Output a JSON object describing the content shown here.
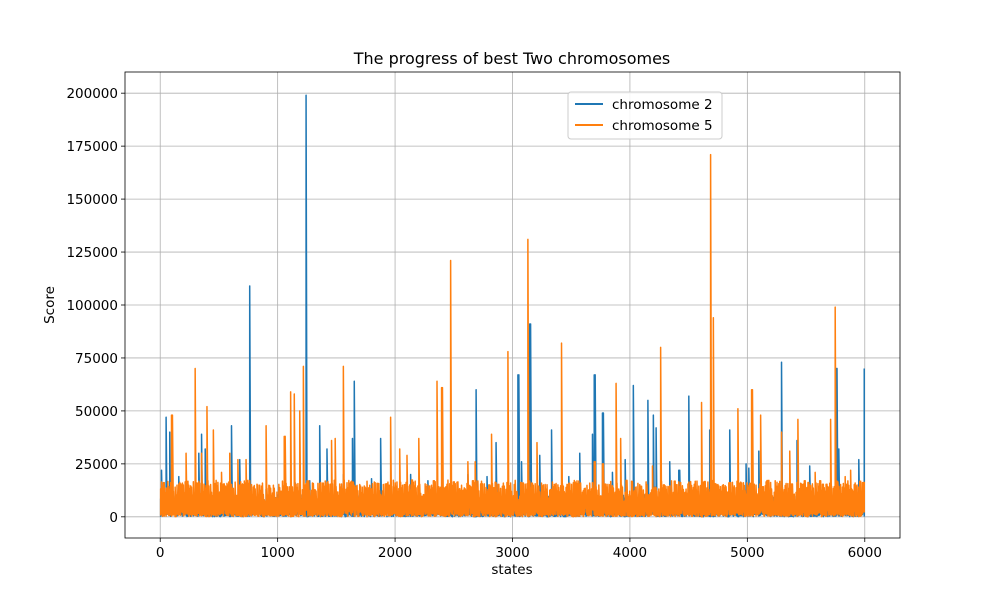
{
  "chart_data": {
    "type": "line",
    "title": "The progress of best Two chromosomes",
    "xlabel": "states",
    "ylabel": "Score",
    "xlim": [
      -300,
      6300
    ],
    "ylim": [
      -10000,
      210000
    ],
    "xticks": [
      0,
      1000,
      2000,
      3000,
      4000,
      5000,
      6000
    ],
    "yticks": [
      0,
      25000,
      50000,
      75000,
      100000,
      125000,
      150000,
      175000,
      200000
    ],
    "grid": true,
    "legend_position": "upper-center-right",
    "series": [
      {
        "name": "chromosome 2",
        "color": "#1f77b4",
        "num_points": 6000,
        "baseline_max": 9000,
        "peaks": [
          [
            10,
            22000
          ],
          [
            50,
            47000
          ],
          [
            80,
            40000
          ],
          [
            160,
            19000
          ],
          [
            330,
            30000
          ],
          [
            350,
            39000
          ],
          [
            380,
            32000
          ],
          [
            610,
            43000
          ],
          [
            680,
            27000
          ],
          [
            760,
            109000
          ],
          [
            900,
            13000
          ],
          [
            1010,
            14000
          ],
          [
            1150,
            16000
          ],
          [
            1240,
            199000
          ],
          [
            1270,
            17000
          ],
          [
            1360,
            43000
          ],
          [
            1420,
            32000
          ],
          [
            1560,
            20000
          ],
          [
            1640,
            37000
          ],
          [
            1650,
            64000
          ],
          [
            1800,
            18000
          ],
          [
            1880,
            37000
          ],
          [
            2000,
            15000
          ],
          [
            2130,
            20000
          ],
          [
            2280,
            17000
          ],
          [
            2500,
            12000
          ],
          [
            2620,
            20000
          ],
          [
            2690,
            60000
          ],
          [
            2780,
            19000
          ],
          [
            2860,
            35000
          ],
          [
            3050,
            67000
          ],
          [
            3080,
            26000
          ],
          [
            3150,
            91000
          ],
          [
            3230,
            29000
          ],
          [
            3330,
            41000
          ],
          [
            3480,
            19000
          ],
          [
            3570,
            30000
          ],
          [
            3680,
            39000
          ],
          [
            3700,
            67000
          ],
          [
            3770,
            49000
          ],
          [
            3850,
            21000
          ],
          [
            3960,
            27000
          ],
          [
            4030,
            62000
          ],
          [
            4150,
            55000
          ],
          [
            4200,
            48000
          ],
          [
            4220,
            42000
          ],
          [
            4340,
            26000
          ],
          [
            4420,
            22000
          ],
          [
            4500,
            57000
          ],
          [
            4680,
            41000
          ],
          [
            4850,
            41000
          ],
          [
            4990,
            25000
          ],
          [
            5010,
            23000
          ],
          [
            5100,
            31000
          ],
          [
            5290,
            73000
          ],
          [
            5420,
            36000
          ],
          [
            5530,
            24000
          ],
          [
            5760,
            70000
          ],
          [
            5780,
            32000
          ],
          [
            5950,
            27000
          ],
          [
            6000,
            70000
          ]
        ]
      },
      {
        "name": "chromosome 5",
        "color": "#ff7f0e",
        "num_points": 6000,
        "baseline_max": 16000,
        "peaks": [
          [
            100,
            48000
          ],
          [
            220,
            30000
          ],
          [
            300,
            70000
          ],
          [
            350,
            30000
          ],
          [
            400,
            52000
          ],
          [
            450,
            41000
          ],
          [
            520,
            21000
          ],
          [
            590,
            30000
          ],
          [
            660,
            27000
          ],
          [
            730,
            27000
          ],
          [
            900,
            43000
          ],
          [
            1060,
            38000
          ],
          [
            1110,
            59000
          ],
          [
            1140,
            58000
          ],
          [
            1190,
            50000
          ],
          [
            1220,
            71000
          ],
          [
            1460,
            36000
          ],
          [
            1490,
            37000
          ],
          [
            1560,
            71000
          ],
          [
            1740,
            13000
          ],
          [
            1960,
            47000
          ],
          [
            2040,
            32000
          ],
          [
            2100,
            29000
          ],
          [
            2200,
            37000
          ],
          [
            2330,
            17000
          ],
          [
            2360,
            64000
          ],
          [
            2400,
            61000
          ],
          [
            2470,
            121000
          ],
          [
            2620,
            26000
          ],
          [
            2680,
            26000
          ],
          [
            2820,
            39000
          ],
          [
            2960,
            78000
          ],
          [
            3130,
            131000
          ],
          [
            3210,
            35000
          ],
          [
            3420,
            82000
          ],
          [
            3700,
            26000
          ],
          [
            3770,
            25000
          ],
          [
            3880,
            63000
          ],
          [
            3920,
            37000
          ],
          [
            4190,
            24000
          ],
          [
            4260,
            80000
          ],
          [
            4610,
            54000
          ],
          [
            4690,
            171000
          ],
          [
            4710,
            94000
          ],
          [
            4920,
            51000
          ],
          [
            5040,
            60000
          ],
          [
            5110,
            48000
          ],
          [
            5290,
            40000
          ],
          [
            5360,
            31000
          ],
          [
            5430,
            46000
          ],
          [
            5580,
            21000
          ],
          [
            5620,
            17000
          ],
          [
            5710,
            46000
          ],
          [
            5750,
            99000
          ],
          [
            5830,
            19000
          ],
          [
            5880,
            22000
          ],
          [
            5950,
            14000
          ]
        ]
      }
    ]
  }
}
